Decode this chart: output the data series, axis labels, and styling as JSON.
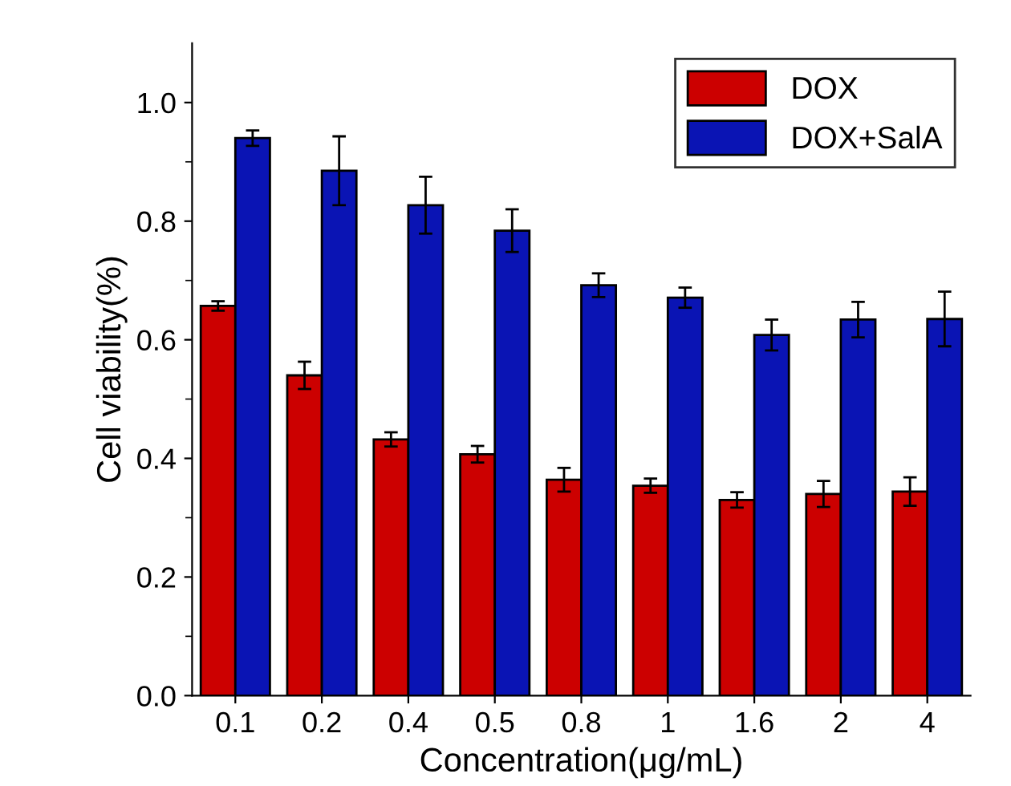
{
  "chart_data": {
    "type": "bar",
    "xlabel": "Concentration(μg/mL)",
    "ylabel": "Cell viability(%)",
    "categories": [
      "0.1",
      "0.2",
      "0.4",
      "0.5",
      "0.8",
      "1",
      "1.6",
      "2",
      "4"
    ],
    "series": [
      {
        "name": "DOX",
        "color": "#cc0000",
        "values": [
          0.657,
          0.54,
          0.432,
          0.407,
          0.364,
          0.354,
          0.33,
          0.34,
          0.344
        ],
        "errors": [
          0.008,
          0.023,
          0.012,
          0.014,
          0.02,
          0.012,
          0.013,
          0.022,
          0.024
        ]
      },
      {
        "name": "DOX+SalA",
        "color": "#0a14b4",
        "values": [
          0.94,
          0.885,
          0.827,
          0.784,
          0.692,
          0.671,
          0.608,
          0.634,
          0.635
        ],
        "errors": [
          0.013,
          0.058,
          0.048,
          0.036,
          0.02,
          0.017,
          0.026,
          0.03,
          0.046
        ]
      }
    ],
    "ylim": [
      0,
      1.1
    ],
    "yticks": [
      {
        "value": 0,
        "label": "0.0"
      },
      0.2,
      0.4,
      0.6,
      0.8,
      {
        "value": 1.0,
        "label": "1.0"
      }
    ],
    "grid": false,
    "legend": "top right"
  }
}
